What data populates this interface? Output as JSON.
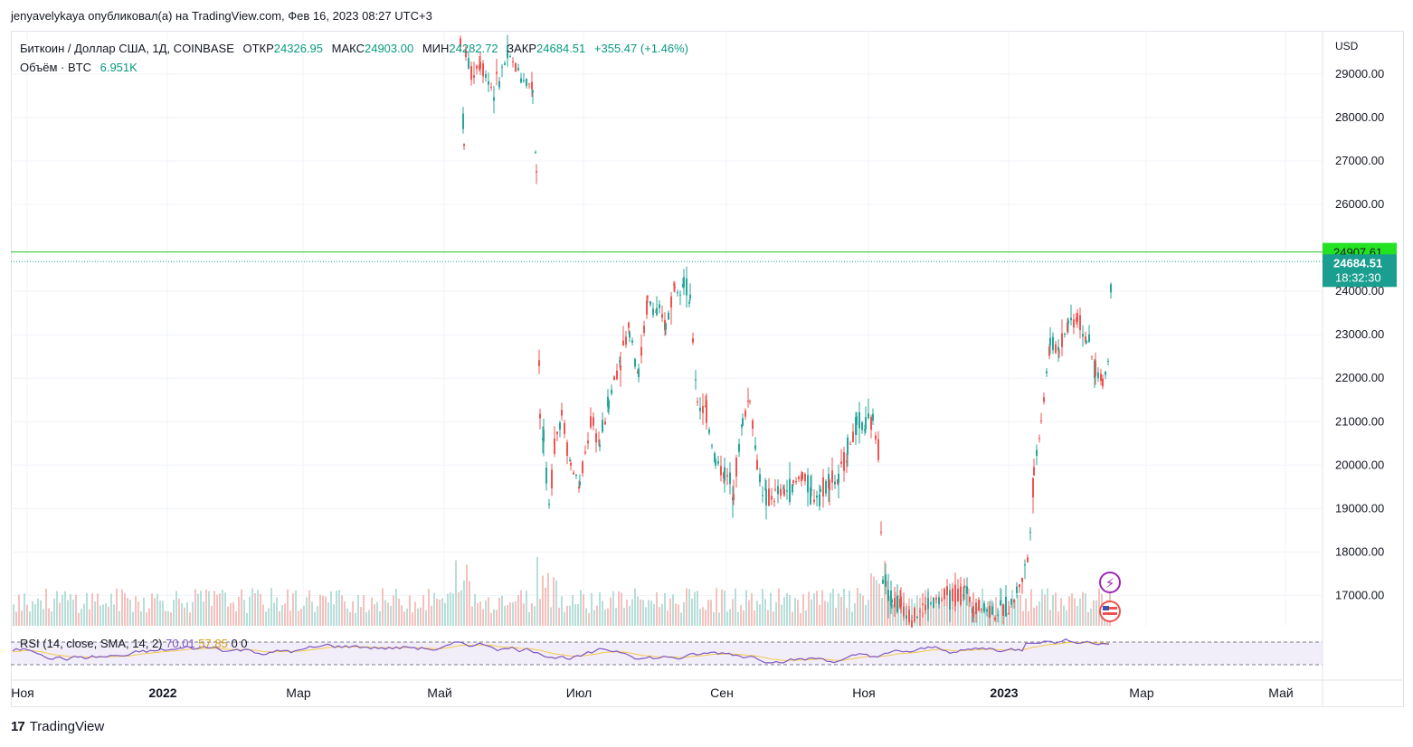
{
  "header": {
    "published_line": "jenyavelykaya опубликовал(а) на TradingView.com, Фев 16, 2023 08:27 UTC+3"
  },
  "legend": {
    "symbol": "Биткоин / Доллар США, 1Д, COINBASE",
    "open_label": "ОТКР",
    "open": "24326.95",
    "high_label": "МАКС",
    "high": "24903.00",
    "low_label": "МИН",
    "low": "24282.72",
    "close_label": "ЗАКР",
    "close": "24684.51",
    "change": "+355.47 (+1.46%)",
    "volume_label": "Объём · BTC",
    "volume": "6.951K"
  },
  "price_scale": {
    "currency": "USD",
    "ticks": [
      "29000.00",
      "28000.00",
      "27000.00",
      "26000.00",
      "24000.00",
      "23000.00",
      "22000.00",
      "21000.00",
      "20000.00",
      "19000.00",
      "18000.00",
      "17000.00"
    ],
    "marker_level": "24907.61",
    "marker_price": "24684.51",
    "marker_countdown": "18:32:30"
  },
  "rsi": {
    "label": "RSI (14, close, SMA, 14, 2)",
    "value": "70.01",
    "sma": "57.85",
    "extra1": "0",
    "extra2": "0"
  },
  "time_axis": [
    "Ноя",
    "2022",
    "Мар",
    "Май",
    "Июл",
    "Сен",
    "Ноя",
    "2023",
    "Мар",
    "Май"
  ],
  "footer": {
    "brand": "TradingView",
    "logo": "17"
  },
  "colors": {
    "up": "#26a69a",
    "down": "#ef5350",
    "level_line": "#22c322",
    "marker_green": "#22e222",
    "marker_teal": "#1a9e8f",
    "rsi_line": "#7e57c2",
    "rsi_sma": "#f2c94c"
  },
  "chart_data": {
    "type": "candlestick",
    "symbol": "BTCUSD",
    "interval": "1D",
    "ylim": [
      16300,
      30000
    ],
    "horizontal_level": 24907.61,
    "last_price": 24684.51,
    "segments": [
      {
        "range": [
          "2022-05-01",
          "2022-05-12"
        ],
        "approx_low": 26700,
        "approx_high": 30000
      },
      {
        "range": [
          "2022-05-12",
          "2022-06-13"
        ],
        "approx_low": 28000,
        "approx_high": 30000
      },
      {
        "range": [
          "2022-06-13",
          "2022-06-18"
        ],
        "approx_low": 17800,
        "approx_high": 27000
      },
      {
        "range": [
          "2022-06-18",
          "2022-08-14"
        ],
        "approx_low": 18700,
        "approx_high": 25000
      },
      {
        "range": [
          "2022-08-14",
          "2022-11-08"
        ],
        "approx_low": 18200,
        "approx_high": 22700
      },
      {
        "range": [
          "2022-11-08",
          "2023-01-10"
        ],
        "approx_low": 16300,
        "approx_high": 18400
      },
      {
        "range": [
          "2023-01-10",
          "2023-02-16"
        ],
        "approx_low": 17000,
        "approx_high": 24903
      }
    ]
  }
}
